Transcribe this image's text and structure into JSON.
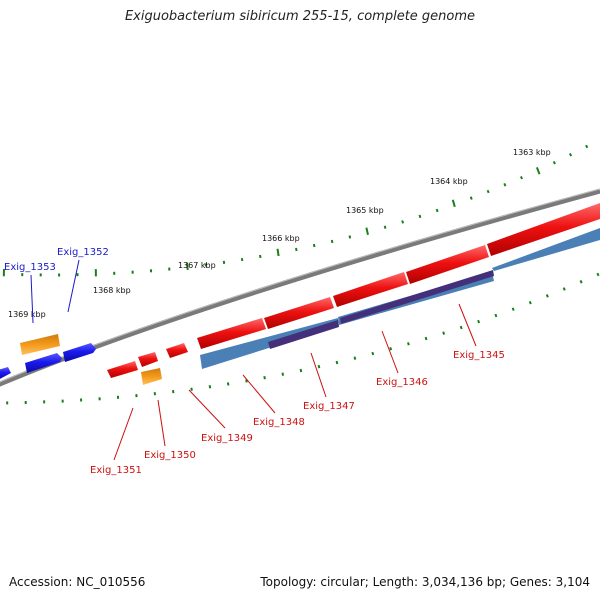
{
  "title": "Exiguobacterium sibiricum 255-15, complete genome",
  "footer": {
    "accession": "Accession: NC_010556",
    "topology": "Topology: circular; Length: 3,034,136 bp; Genes: 3,104"
  },
  "colors": {
    "backbone": "#7a7a7a",
    "tick": "#1a7f1a",
    "forward_gene": "#1a1aee",
    "reverse_gene": "#ee1111",
    "orange_feature": "#f39a1a",
    "steelblue_feature": "#4a80b6",
    "purple_feature": "#44307a",
    "forward_label": "#1a1acc",
    "reverse_label": "#cc1111"
  },
  "kbp_labels": [
    "1363 kbp",
    "1364 kbp",
    "1365 kbp",
    "1366 kbp",
    "1367 kbp",
    "1368 kbp",
    "1369 kbp"
  ],
  "forward_labels": [
    "Exig_1353",
    "Exig_1352"
  ],
  "reverse_labels": [
    "Exig_1351",
    "Exig_1350",
    "Exig_1349",
    "Exig_1348",
    "Exig_1347",
    "Exig_1346",
    "Exig_1345"
  ]
}
